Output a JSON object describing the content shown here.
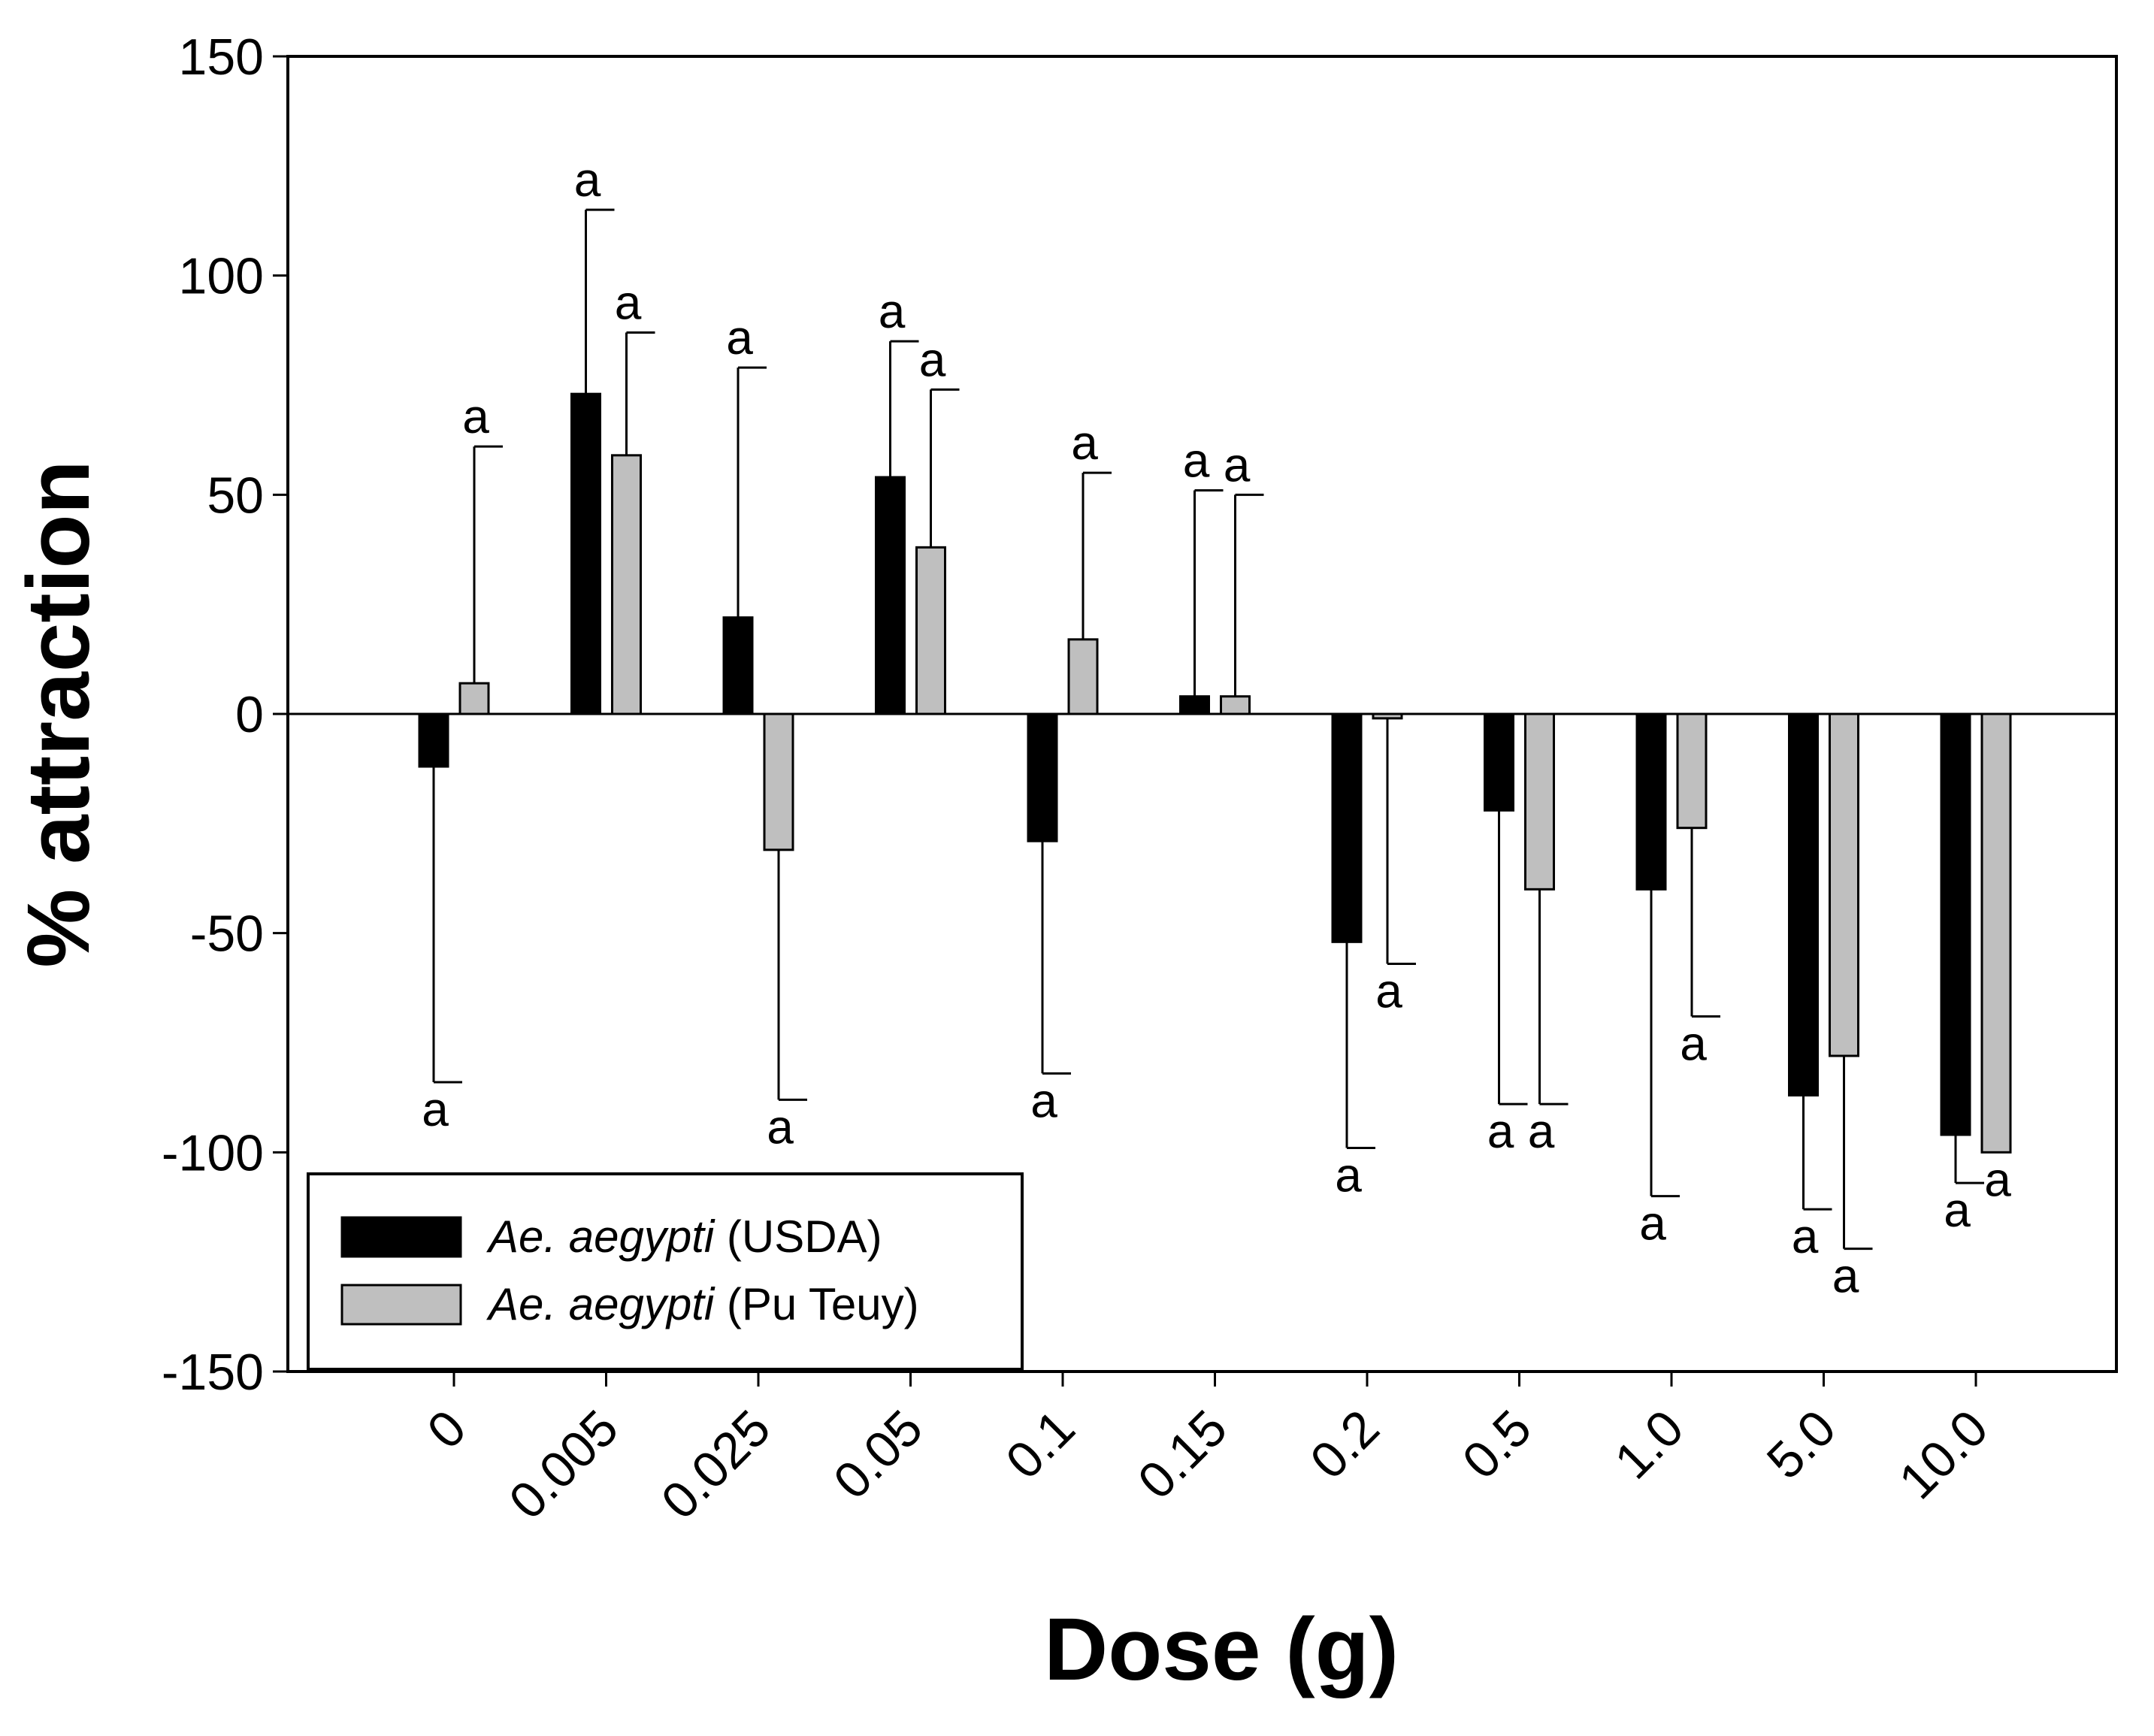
{
  "chart_data": {
    "type": "bar",
    "xlabel": "Dose (g)",
    "ylabel": "% attraction",
    "ylim": [
      -150,
      150
    ],
    "yticks": [
      150,
      100,
      50,
      0,
      -50,
      -100,
      -150
    ],
    "categories": [
      "0",
      "0.005",
      "0.025",
      "0.05",
      "0.1",
      "0.15",
      "0.2",
      "0.5",
      "1.0",
      "5.0",
      "10.0"
    ],
    "series": [
      {
        "name_italic": "Ae. aegypti",
        "name_suffix": " (USDA)",
        "color": "#000000",
        "values": [
          -12,
          73,
          22,
          54,
          -29,
          4,
          -52,
          -22,
          -40,
          -87,
          -96
        ],
        "errors": [
          72,
          42,
          57,
          31,
          53,
          47,
          47,
          67,
          70,
          26,
          11
        ],
        "letters": [
          "a",
          "a",
          "a",
          "a",
          "a",
          "a",
          "a",
          "a",
          "a",
          "a",
          "a"
        ]
      },
      {
        "name_italic": "Ae. aegypti",
        "name_suffix": " (Pu Teuy)",
        "color": "#bfbfbf",
        "values": [
          7,
          59,
          -31,
          38,
          17,
          4,
          -1,
          -40,
          -26,
          -78,
          -100
        ],
        "errors": [
          54,
          28,
          57,
          36,
          38,
          46,
          56,
          49,
          43,
          44,
          0
        ],
        "letters": [
          "a",
          "a",
          "a",
          "a",
          "a",
          "a",
          "a",
          "a",
          "a",
          "a",
          "a"
        ]
      }
    ],
    "legend_position": "bottom-left"
  }
}
